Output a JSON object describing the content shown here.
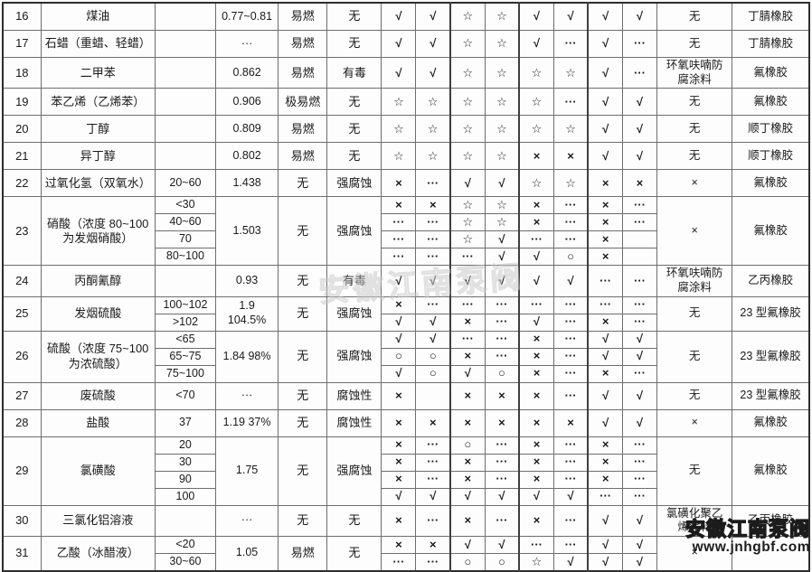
{
  "table": {
    "rows": [
      {
        "no": "16",
        "name": "煤油",
        "density": "0.77~0.81",
        "flammable": "易燃",
        "toxicity": "无",
        "coating": "无",
        "material": "丁腈橡胶",
        "subs": [
          {
            "conc": "",
            "symbols": [
              "√",
              "√",
              "☆",
              "☆",
              "√",
              "√",
              "√",
              "√"
            ]
          }
        ]
      },
      {
        "no": "17",
        "name": "石蜡（重蜡、轻蜡）",
        "density": "···",
        "flammable": "易燃",
        "toxicity": "无",
        "coating": "无",
        "material": "丁腈橡胶",
        "subs": [
          {
            "conc": "",
            "symbols": [
              "√",
              "√",
              "☆",
              "☆",
              "√",
              "···",
              "√",
              "···"
            ]
          }
        ]
      },
      {
        "no": "18",
        "name": "二甲苯",
        "density": "0.862",
        "flammable": "易燃",
        "toxicity": "有毒",
        "coating": "环氧呋喃防腐涂料",
        "material": "氟橡胶",
        "subs": [
          {
            "conc": "",
            "symbols": [
              "√",
              "√",
              "☆",
              "☆",
              "☆",
              "☆",
              "√",
              "···"
            ]
          }
        ]
      },
      {
        "no": "19",
        "name": "苯乙烯（乙烯苯）",
        "density": "0.906",
        "flammable": "极易燃",
        "toxicity": "无",
        "coating": "无",
        "material": "氟橡胶",
        "subs": [
          {
            "conc": "",
            "symbols": [
              "☆",
              "☆",
              "☆",
              "☆",
              "☆",
              "···",
              "√",
              "√"
            ]
          }
        ]
      },
      {
        "no": "20",
        "name": "丁醇",
        "density": "0.809",
        "flammable": "易燃",
        "toxicity": "无",
        "coating": "无",
        "material": "顺丁橡胶",
        "subs": [
          {
            "conc": "",
            "symbols": [
              "☆",
              "☆",
              "☆",
              "☆",
              "☆",
              "☆",
              "√",
              "√"
            ]
          }
        ]
      },
      {
        "no": "21",
        "name": "异丁醇",
        "density": "0.802",
        "flammable": "易燃",
        "toxicity": "无",
        "coating": "无",
        "material": "顺丁橡胶",
        "subs": [
          {
            "conc": "",
            "symbols": [
              "☆",
              "☆",
              "☆",
              "☆",
              "×",
              "×",
              "√",
              "√"
            ]
          }
        ]
      },
      {
        "no": "22",
        "name": "过氧化氢（双氧水）",
        "density": "1.438",
        "flammable": "无",
        "toxicity": "强腐蚀",
        "coating": "×",
        "material": "氟橡胶",
        "subs": [
          {
            "conc": "20~60",
            "symbols": [
              "×",
              "···",
              "√",
              "√",
              "☆",
              "☆",
              "×",
              "×"
            ]
          }
        ]
      },
      {
        "no": "23",
        "name": "硝酸（浓度 80~100 为发烟硝酸）",
        "density": "1.503",
        "flammable": "无",
        "toxicity": "强腐蚀",
        "coating": "×",
        "material": "氟橡胶",
        "subs": [
          {
            "conc": "<30",
            "symbols": [
              "×",
              "×",
              "☆",
              "☆",
              "×",
              "···",
              "×",
              "···"
            ]
          },
          {
            "conc": "40~60",
            "symbols": [
              "···",
              "···",
              "☆",
              "☆",
              "×",
              "···",
              "×",
              "···"
            ]
          },
          {
            "conc": "70",
            "symbols": [
              "···",
              "···",
              "☆",
              "√",
              "···",
              "···",
              "×",
              ""
            ]
          },
          {
            "conc": "80~100",
            "symbols": [
              "···",
              "···",
              "···",
              "√",
              "√",
              "○",
              "×",
              ""
            ]
          }
        ]
      },
      {
        "no": "24",
        "name": "丙酮氰醇",
        "density": "0.93",
        "flammable": "无",
        "toxicity": "有毒",
        "coating": "环氧呋喃防腐涂料",
        "material": "乙丙橡胶",
        "subs": [
          {
            "conc": "",
            "symbols": [
              "√",
              "√",
              "√",
              "√",
              "√",
              "√",
              "···",
              "···"
            ]
          }
        ]
      },
      {
        "no": "25",
        "name": "发烟硫酸",
        "density": "1.9\n104.5%",
        "flammable": "无",
        "toxicity": "强腐蚀",
        "coating": "无",
        "material": "23 型氟橡胶",
        "subs": [
          {
            "conc": "100~102",
            "symbols": [
              "×",
              "···",
              "···",
              "···",
              "···",
              "···",
              "···",
              "···"
            ]
          },
          {
            "conc": ">102",
            "symbols": [
              "√",
              "√",
              "×",
              "···",
              "√",
              "···",
              "×",
              "···"
            ]
          }
        ]
      },
      {
        "no": "26",
        "name": "硫酸（浓度 75~100 为浓硫酸）",
        "density": "1.84  98%",
        "flammable": "无",
        "toxicity": "强腐蚀",
        "coating": "无",
        "material": "23 型氟橡胶",
        "subs": [
          {
            "conc": "<65",
            "symbols": [
              "√",
              "√",
              "···",
              "···",
              "×",
              "···",
              "√",
              "√"
            ]
          },
          {
            "conc": "65~75",
            "symbols": [
              "○",
              "○",
              "×",
              "···",
              "×",
              "···",
              "√",
              "√"
            ]
          },
          {
            "conc": "75~100",
            "symbols": [
              "√",
              "○",
              "√",
              "○",
              "×",
              "···",
              "×",
              "···"
            ]
          }
        ]
      },
      {
        "no": "27",
        "name": "废硫酸",
        "density": "···",
        "flammable": "无",
        "toxicity": "腐蚀性",
        "coating": "无",
        "material": "23 型氟橡胶",
        "subs": [
          {
            "conc": "<70",
            "symbols": [
              "×",
              "",
              "×",
              "×",
              "×",
              "···",
              "√",
              "√"
            ]
          }
        ]
      },
      {
        "no": "28",
        "name": "盐酸",
        "density": "1.19  37%",
        "flammable": "无",
        "toxicity": "腐蚀性",
        "coating": "×",
        "material": "氟橡胶",
        "subs": [
          {
            "conc": "37",
            "symbols": [
              "×",
              "×",
              "×",
              "×",
              "×",
              "×",
              "√",
              "√"
            ]
          }
        ]
      },
      {
        "no": "29",
        "name": "氯磺酸",
        "density": "1.75",
        "flammable": "无",
        "toxicity": "强腐蚀",
        "coating": "无",
        "material": "氟橡胶",
        "subs": [
          {
            "conc": "20",
            "symbols": [
              "×",
              "···",
              "○",
              "···",
              "×",
              "···",
              "×",
              "···"
            ]
          },
          {
            "conc": "30",
            "symbols": [
              "×",
              "···",
              "×",
              "···",
              "×",
              "···",
              "×",
              "···"
            ]
          },
          {
            "conc": "90",
            "symbols": [
              "×",
              "···",
              "×",
              "···",
              "×",
              "···",
              "×",
              "···"
            ]
          },
          {
            "conc": "100",
            "symbols": [
              "√",
              "√",
              "√",
              "√",
              "√",
              "√",
              "···",
              "···"
            ]
          }
        ]
      },
      {
        "no": "30",
        "name": "三氯化铝溶液",
        "density": "···",
        "flammable": "无",
        "toxicity": "无",
        "coating": "氯磺化聚乙烯涂料",
        "material": "乙丙橡胶",
        "subs": [
          {
            "conc": "",
            "symbols": [
              "×",
              "···",
              "×",
              "···",
              "×",
              "···",
              "√",
              "√"
            ]
          }
        ]
      },
      {
        "no": "31",
        "name": "乙酸（冰醋液）",
        "density": "1.05",
        "flammable": "易燃",
        "toxicity": "无",
        "coating": "×",
        "material": "",
        "subs": [
          {
            "conc": "<20",
            "symbols": [
              "×",
              "×",
              "√",
              "√",
              "···",
              "···",
              "√",
              "√"
            ]
          },
          {
            "conc": "30~60",
            "symbols": [
              "···",
              "···",
              "○",
              "○",
              "☆",
              "√",
              "√",
              "√"
            ]
          }
        ]
      }
    ]
  },
  "watermark_center": "安徽江南泵阀",
  "watermark_corner": {
    "title": "安徽江南泵阀",
    "url": "www.jnhgbf.com"
  }
}
